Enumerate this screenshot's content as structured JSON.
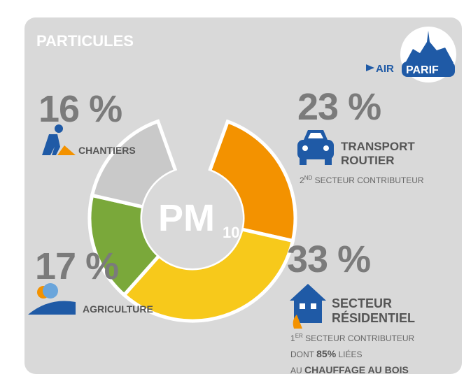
{
  "chart_data": {
    "type": "pie",
    "title": "PARTICULES",
    "logo": [
      "AIR",
      "PARIF"
    ],
    "center_label": "PM",
    "center_subscript": "10",
    "categories": [
      "TRANSPORT ROUTIER",
      "SECTEUR RÉSIDENTIEL",
      "AGRICULTURE",
      "CHANTIERS"
    ],
    "values": [
      23,
      33,
      17,
      16
    ],
    "value_labels": [
      "23 %",
      "33 %",
      "17 %",
      "16 %"
    ],
    "colors": [
      "#f39200",
      "#f7c91b",
      "#7aa83a",
      "#c9c9c9"
    ],
    "annotations": [
      [
        "2",
        "ND",
        " SECTEUR CONTRIBUTEUR"
      ],
      [
        "1",
        "ER",
        " SECTEUR CONTRIBUTEUR",
        "DONT ",
        "85%",
        " LIÉES",
        "AU ",
        "CHAUFFAGE AU BOIS"
      ]
    ]
  }
}
